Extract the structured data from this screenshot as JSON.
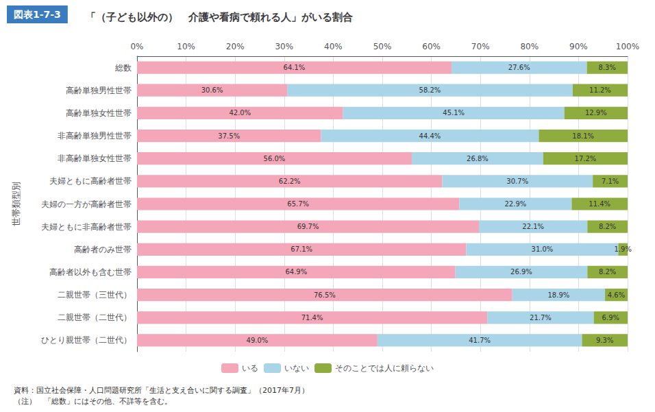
{
  "chart_data": {
    "type": "bar",
    "orientation": "horizontal",
    "stacked": true,
    "title": "「（子ども以外の）　介護や看病で頼れる人」がいる割合",
    "annotations": [
      "図表1-7-3",
      "資料：国立社会保障・人口問題研究所「生活と支え合いに関する調査」（2017年7月）",
      "（注）　「総数」にはその他、不詳等を含む。"
    ],
    "ylabel": "世帯類型別",
    "categories": [
      "総数",
      "高齢単独男性世帯",
      "高齢単独女性世帯",
      "非高齢単独男性世帯",
      "非高齢単独女性世帯",
      "夫婦ともに高齢者世帯",
      "夫婦の一方が高齢者世帯",
      "夫婦ともに非高齢者世帯",
      "高齢者のみ世帯",
      "高齢者以外も含む世帯",
      "二親世帯（三世代）",
      "二親世帯（二世代）",
      "ひとり親世帯（二世代）"
    ],
    "series": [
      {
        "name": "いる",
        "color": "#f4a7b9",
        "values": [
          64.1,
          30.6,
          42.0,
          37.5,
          56.0,
          62.2,
          65.7,
          69.7,
          67.1,
          64.9,
          76.5,
          71.4,
          49.0
        ],
        "value_labels": [
          "64.1%",
          "30.6%",
          "42.0%",
          "37.5%",
          "56.0%",
          "62.2%",
          "65.7%",
          "69.7%",
          "67.1%",
          "64.9%",
          "76.5%",
          "71.4%",
          "49.0%"
        ]
      },
      {
        "name": "いない",
        "color": "#aad4e8",
        "values": [
          27.6,
          58.2,
          45.1,
          44.4,
          26.8,
          30.7,
          22.9,
          22.1,
          31.0,
          26.9,
          18.9,
          21.7,
          41.7
        ],
        "value_labels": [
          "27.6%",
          "58.2%",
          "45.1%",
          "44.4%",
          "26.8%",
          "30.7%",
          "22.9%",
          "22.1%",
          "31.0%",
          "26.9%",
          "18.9%",
          "21.7%",
          "41.7%"
        ]
      },
      {
        "name": "そのことでは人に頼らない",
        "color": "#8fad3f",
        "values": [
          8.3,
          11.2,
          12.9,
          18.1,
          17.2,
          7.1,
          11.4,
          8.2,
          1.9,
          8.2,
          4.6,
          6.9,
          9.3
        ],
        "value_labels": [
          "8.3%",
          "11.2%",
          "12.9%",
          "18.1%",
          "17.2%",
          "7.1%",
          "11.4%",
          "8.2%",
          "1.9%",
          "8.2%",
          "4.6%",
          "6.9%",
          "9.3%"
        ]
      }
    ],
    "xlim": [
      0,
      100
    ],
    "xticks": [
      {
        "value": 0,
        "label": "0%"
      },
      {
        "value": 10,
        "label": "10%"
      },
      {
        "value": 20,
        "label": "20%"
      },
      {
        "value": 30,
        "label": "30%"
      },
      {
        "value": 40,
        "label": "40%"
      },
      {
        "value": 50,
        "label": "50%"
      },
      {
        "value": 60,
        "label": "60%"
      },
      {
        "value": 70,
        "label": "70%"
      },
      {
        "value": 80,
        "label": "80%"
      },
      {
        "value": 90,
        "label": "90%"
      },
      {
        "value": 100,
        "label": "100%"
      }
    ],
    "grid": true,
    "legend": "bottom",
    "data_labels": true
  }
}
